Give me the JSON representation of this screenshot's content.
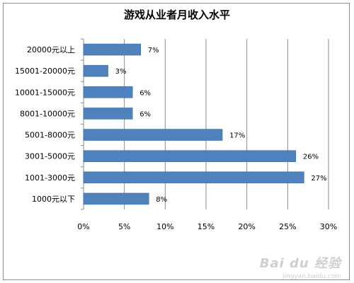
{
  "chart_data": {
    "type": "bar",
    "orientation": "horizontal",
    "title": "游戏从业者月收入水平",
    "categories": [
      "20000元以上",
      "15001-20000元",
      "10001-15000元",
      "8001-10000元",
      "5001-8000元",
      "3001-5000元",
      "1001-3000元",
      "1000元以下"
    ],
    "values": [
      7,
      3,
      6,
      6,
      17,
      26,
      27,
      8
    ],
    "value_labels": [
      "7%",
      "3%",
      "6%",
      "6%",
      "17%",
      "26%",
      "27%",
      "8%"
    ],
    "x_ticks": [
      "0%",
      "5%",
      "10%",
      "15%",
      "20%",
      "25%",
      "30%"
    ],
    "xlim": [
      0,
      30
    ],
    "grid": "vertical",
    "legend": "none",
    "bar_color": "#4f81bd"
  },
  "watermark": {
    "main": "Bai du 经验",
    "sub": "jingyan.baidu.com"
  }
}
